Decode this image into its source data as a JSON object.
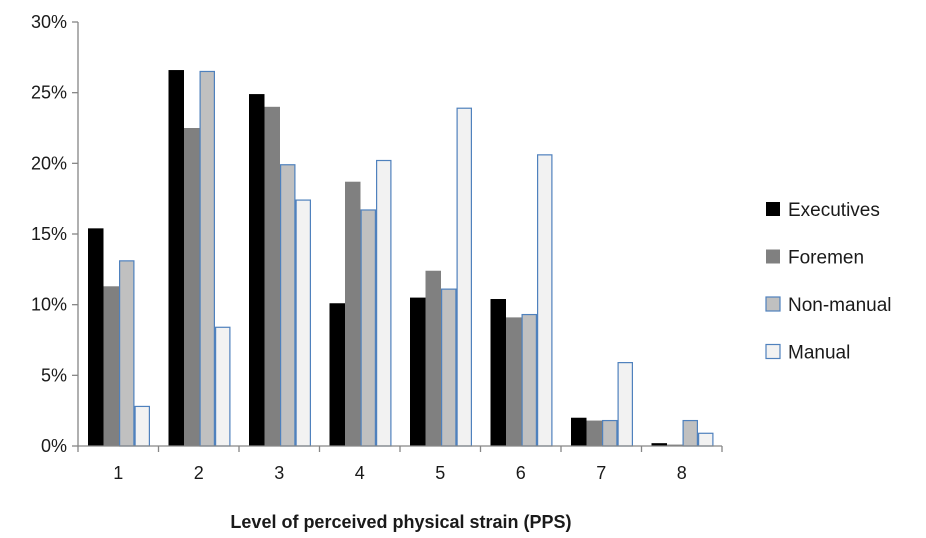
{
  "chart_data": {
    "type": "bar",
    "title": "",
    "xlabel": "Level of perceived physical strain (PPS)",
    "ylabel": "",
    "categories": [
      "1",
      "2",
      "3",
      "4",
      "5",
      "6",
      "7",
      "8"
    ],
    "ylim": [
      0,
      30
    ],
    "yticks": [
      0,
      5,
      10,
      15,
      20,
      25,
      30
    ],
    "ytick_labels": [
      "0%",
      "5%",
      "10%",
      "15%",
      "20%",
      "25%",
      "30%"
    ],
    "grid": false,
    "legend_position": "right",
    "series": [
      {
        "name": "Executives",
        "fill": "#000000",
        "stroke": "#000000",
        "values": [
          15.4,
          26.6,
          24.9,
          10.1,
          10.5,
          10.4,
          2.0,
          0.2
        ]
      },
      {
        "name": "Foremen",
        "fill": "#808080",
        "stroke": "#808080",
        "values": [
          11.3,
          22.5,
          24.0,
          18.7,
          12.4,
          9.1,
          1.8,
          0.1
        ]
      },
      {
        "name": "Non-manual",
        "fill": "#c0c0c0",
        "stroke": "#4f81bd",
        "values": [
          13.1,
          26.5,
          19.9,
          16.7,
          11.1,
          9.3,
          1.8,
          1.8
        ]
      },
      {
        "name": "Manual",
        "fill": "#f2f2f2",
        "stroke": "#4f81bd",
        "values": [
          2.8,
          8.4,
          17.4,
          20.2,
          23.9,
          20.6,
          5.9,
          0.9
        ]
      }
    ]
  }
}
